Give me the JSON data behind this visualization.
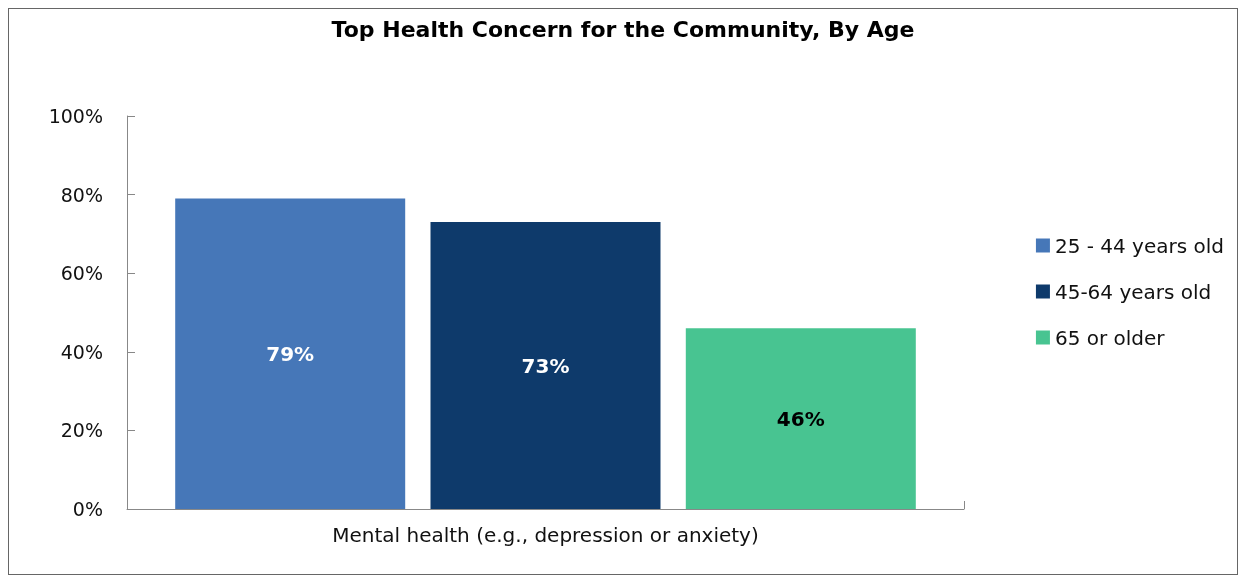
{
  "chart_data": {
    "type": "bar",
    "title": "Top Health Concern for the Community, By Age",
    "categories": [
      "Mental health (e.g., depression or anxiety)"
    ],
    "series": [
      {
        "name": "25 - 44 years old",
        "color": "#4677b8",
        "values": [
          79
        ],
        "value_labels": [
          "79%"
        ]
      },
      {
        "name": "45-64 years old",
        "color": "#0e3a6b",
        "values": [
          73
        ],
        "value_labels": [
          "73%"
        ]
      },
      {
        "name": "65 or older",
        "color": "#48c491",
        "values": [
          46
        ],
        "value_labels": [
          "46%"
        ]
      }
    ],
    "ylim": [
      0,
      100
    ],
    "yticks": [
      {
        "value": 0,
        "label": "0%"
      },
      {
        "value": 20,
        "label": "20%"
      },
      {
        "value": 40,
        "label": "40%"
      },
      {
        "value": 60,
        "label": "60%"
      },
      {
        "value": 80,
        "label": "80%"
      },
      {
        "value": 100,
        "label": "100%"
      }
    ],
    "grid": false,
    "legend": "right"
  }
}
